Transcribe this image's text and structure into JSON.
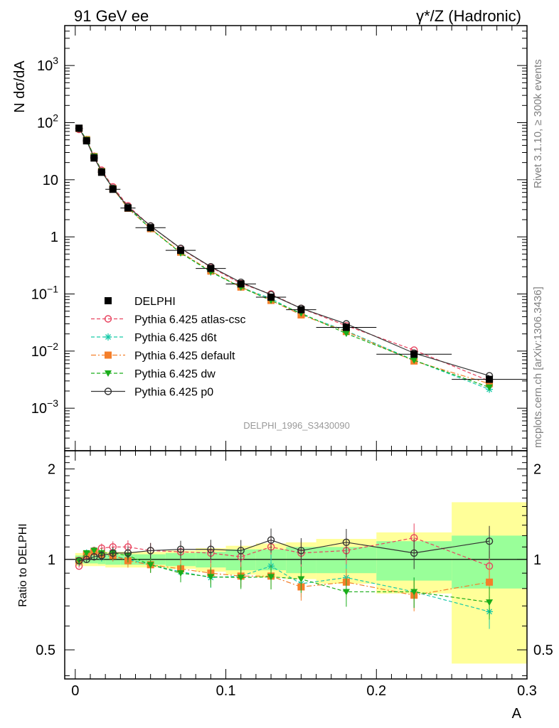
{
  "header": {
    "left": "91 GeV ee",
    "right_prefix": "γ*/Z",
    "right_suffix": "(Hadronic)",
    "right_text": "γ*/Z (Hadronic)"
  },
  "side_labels": {
    "rivet": "Rivet 3.1.10, ≥ 300k events",
    "mcplots": "mcplots.cern.ch [arXiv:1306.3436]"
  },
  "watermark": "DELPHI_1996_S3430090",
  "chart_data": {
    "type": "line",
    "xlabel": "A",
    "xlim": [
      -0.007,
      0.3
    ],
    "x_ticks": [
      "0",
      "0.1",
      "0.2",
      "0.3"
    ],
    "x_tick_values": [
      0,
      0.1,
      0.2,
      0.3
    ],
    "bins": [
      [
        0,
        0.005
      ],
      [
        0.005,
        0.01
      ],
      [
        0.01,
        0.015
      ],
      [
        0.015,
        0.02
      ],
      [
        0.02,
        0.03
      ],
      [
        0.03,
        0.04
      ],
      [
        0.04,
        0.06
      ],
      [
        0.06,
        0.08
      ],
      [
        0.08,
        0.1
      ],
      [
        0.1,
        0.12
      ],
      [
        0.12,
        0.14
      ],
      [
        0.14,
        0.16
      ],
      [
        0.16,
        0.2
      ],
      [
        0.2,
        0.25
      ],
      [
        0.25,
        0.3
      ]
    ],
    "x": [
      0.0025,
      0.0075,
      0.0125,
      0.0175,
      0.025,
      0.035,
      0.05,
      0.07,
      0.09,
      0.11,
      0.13,
      0.15,
      0.18,
      0.225,
      0.275
    ],
    "main": {
      "ylabel": "N dσ/dA",
      "log": true,
      "ylim": [
        0.00018,
        5000
      ],
      "y_tick_labels": [
        "10^-3",
        "10^-2",
        "10^-1",
        "1",
        "10",
        "10^2",
        "10^3"
      ],
      "y_tick_values": [
        0.001,
        0.01,
        0.1,
        1,
        10,
        100,
        1000
      ]
    },
    "ratio": {
      "ylabel": "Ratio to DELPHI",
      "log": true,
      "ylim": [
        0.4,
        2.3
      ],
      "y_tick_labels": [
        "0.5",
        "1",
        "2"
      ],
      "y_tick_values": [
        0.5,
        1,
        2
      ],
      "band_inner_frac": [
        0.03,
        0.03,
        0.03,
        0.035,
        0.04,
        0.04,
        0.04,
        0.05,
        0.06,
        0.08,
        0.08,
        0.1,
        0.1,
        0.15,
        0.2
      ],
      "band_outer_frac": [
        0.05,
        0.05,
        0.05,
        0.05,
        0.06,
        0.06,
        0.06,
        0.07,
        0.09,
        0.11,
        0.13,
        0.14,
        0.17,
        0.23,
        0.55
      ]
    },
    "series": [
      {
        "name": "DELPHI",
        "color": "#000000",
        "marker": "filled-square",
        "line": "none",
        "values": [
          80,
          48,
          24,
          13.5,
          6.8,
          3.2,
          1.45,
          0.58,
          0.28,
          0.15,
          0.088,
          0.053,
          0.026,
          0.0088,
          0.0032
        ],
        "ratio": [
          1,
          1,
          1,
          1,
          1,
          1,
          1,
          1,
          1,
          1,
          1,
          1,
          1,
          1,
          1
        ]
      },
      {
        "name": "Pythia 6.425 atlas-csc",
        "color": "#e8435f",
        "marker": "open-circle",
        "line": "dashed",
        "values": [
          76,
          49.5,
          25.8,
          14.7,
          7.5,
          3.5,
          1.55,
          0.62,
          0.295,
          0.152,
          0.1,
          0.056,
          0.0278,
          0.0104,
          0.003
        ],
        "ratio": [
          0.95,
          1.03,
          1.07,
          1.09,
          1.1,
          1.1,
          1.07,
          1.06,
          1.05,
          1.02,
          1.1,
          1.05,
          1.07,
          1.18,
          0.95
        ]
      },
      {
        "name": "Pythia 6.425 d6t",
        "color": "#17c9a8",
        "marker": "asterisk",
        "line": "dashed",
        "values": [
          79,
          51,
          25.2,
          13.8,
          7.0,
          3.2,
          1.39,
          0.525,
          0.242,
          0.131,
          0.083,
          0.044,
          0.0226,
          0.0069,
          0.00214
        ],
        "ratio": [
          0.98,
          1.05,
          1.05,
          1.02,
          1.03,
          1.0,
          0.96,
          0.91,
          0.87,
          0.88,
          0.95,
          0.83,
          0.87,
          0.78,
          0.67
        ]
      },
      {
        "name": "Pythia 6.425 default",
        "color": "#f47f2a",
        "marker": "filled-square",
        "line": "dashdot",
        "values": [
          79,
          50.5,
          25.5,
          14.0,
          7.0,
          3.17,
          1.39,
          0.54,
          0.252,
          0.132,
          0.077,
          0.043,
          0.022,
          0.0067,
          0.00269
        ],
        "ratio": [
          0.99,
          1.04,
          1.06,
          1.04,
          1.03,
          0.99,
          0.96,
          0.93,
          0.9,
          0.88,
          0.88,
          0.81,
          0.84,
          0.76,
          0.84
        ]
      },
      {
        "name": "Pythia 6.425 dw",
        "color": "#1aad1a",
        "marker": "filled-triangle-down",
        "line": "dashed",
        "values": [
          79,
          50.5,
          25.7,
          14.2,
          7.1,
          3.3,
          1.39,
          0.522,
          0.245,
          0.131,
          0.077,
          0.046,
          0.0203,
          0.0069,
          0.00232
        ],
        "ratio": [
          0.99,
          1.05,
          1.07,
          1.05,
          1.05,
          1.03,
          0.96,
          0.9,
          0.875,
          0.87,
          0.875,
          0.86,
          0.78,
          0.78,
          0.72
        ]
      },
      {
        "name": "Pythia 6.425 p0",
        "color": "#333333",
        "marker": "open-circle",
        "line": "solid",
        "values": [
          79,
          48.2,
          24.5,
          13.9,
          7.1,
          3.35,
          1.55,
          0.63,
          0.3,
          0.16,
          0.097,
          0.056,
          0.03,
          0.0092,
          0.0037
        ],
        "ratio": [
          0.99,
          1.0,
          1.02,
          1.03,
          1.05,
          1.05,
          1.07,
          1.08,
          1.08,
          1.07,
          1.16,
          1.07,
          1.14,
          1.05,
          1.15
        ]
      }
    ]
  }
}
